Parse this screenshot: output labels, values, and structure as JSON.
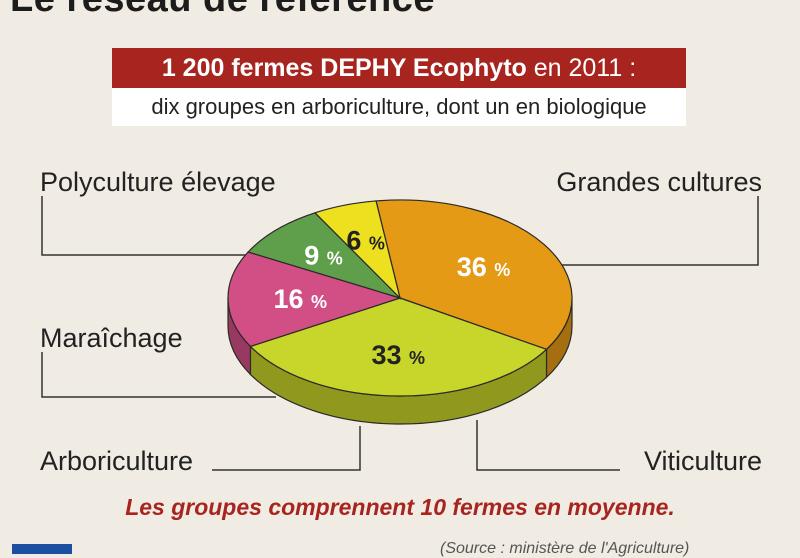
{
  "header": {
    "title": "Le réseau de référence",
    "banner_bold": "1 200 fermes DEPHY Ecophyto",
    "banner_rest": " en 2011 :",
    "subtitle": "dix groupes en arboriculture, dont un en biologique"
  },
  "chart_data": {
    "type": "pie",
    "unit": "%",
    "slices": [
      {
        "label": "Polyculture élevage",
        "value": 36,
        "color": "#e59a16"
      },
      {
        "label": "Grandes cultures",
        "value": 33,
        "color": "#c8d52a"
      },
      {
        "label": "Viticulture",
        "value": 16,
        "color": "#d24f86"
      },
      {
        "label": "Arboriculture",
        "value": 9,
        "color": "#5f9e4a"
      },
      {
        "label": "Maraîchage",
        "value": 6,
        "color": "#ede01f"
      }
    ]
  },
  "footer": {
    "note": "Les groupes comprennent 10 fermes en moyenne.",
    "source": "(Source : ministère de l'Agriculture)"
  }
}
